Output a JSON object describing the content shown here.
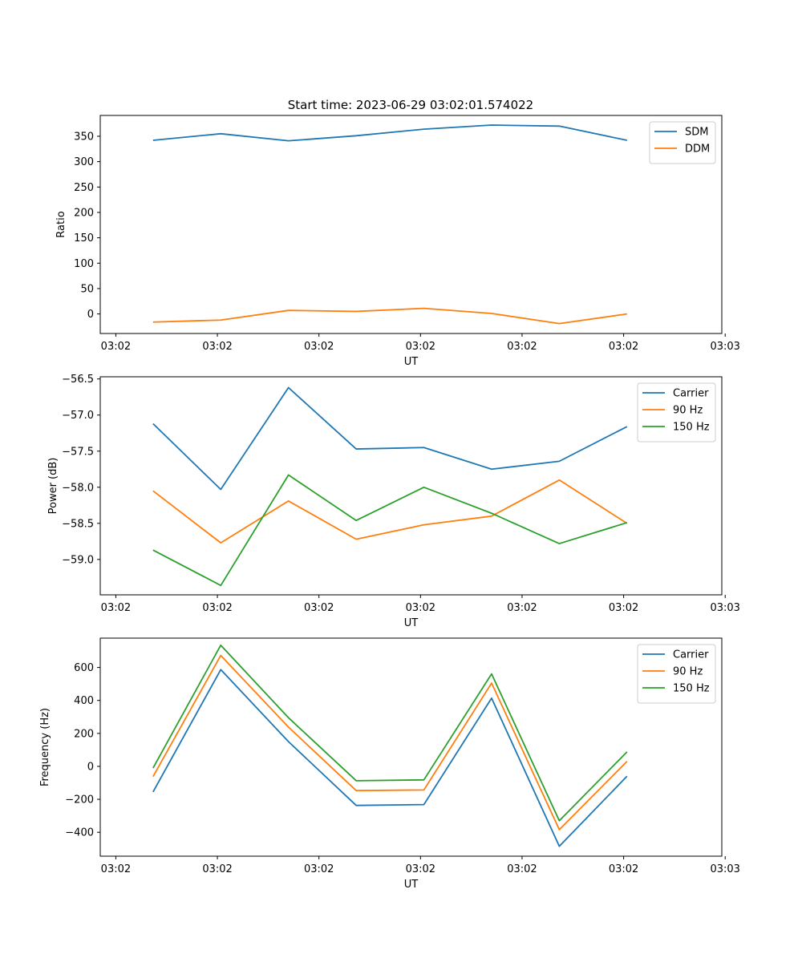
{
  "figure": {
    "title": "Start time: 2023-06-29 03:02:01.574022"
  },
  "chart_data": [
    {
      "type": "line",
      "ylabel": "Ratio",
      "xlabel": "UT",
      "x": [
        1,
        2,
        3,
        4,
        5,
        6,
        7,
        8
      ],
      "xlim": [
        0.22,
        9.4
      ],
      "x_ticks": [
        {
          "pos": 0.45,
          "label": "03:02"
        },
        {
          "pos": 1.95,
          "label": "03:02"
        },
        {
          "pos": 3.45,
          "label": "03:02"
        },
        {
          "pos": 4.95,
          "label": "03:02"
        },
        {
          "pos": 6.45,
          "label": "03:02"
        },
        {
          "pos": 7.95,
          "label": "03:02"
        },
        {
          "pos": 9.45,
          "label": "03:03"
        }
      ],
      "ylim": [
        -38.5,
        391
      ],
      "y_ticks": [
        0,
        50,
        100,
        150,
        200,
        250,
        300,
        350
      ],
      "legend": "top-right",
      "grid": false,
      "series": [
        {
          "name": "SDM",
          "color": "#1f77b4",
          "values": [
            342,
            355,
            341,
            351,
            364,
            372,
            370,
            342
          ]
        },
        {
          "name": "DDM",
          "color": "#ff7f0e",
          "values": [
            -16,
            -12,
            7,
            5,
            11,
            1,
            -19,
            0
          ]
        }
      ]
    },
    {
      "type": "line",
      "ylabel": "Power (dB)",
      "xlabel": "UT",
      "x": [
        1,
        2,
        3,
        4,
        5,
        6,
        7,
        8
      ],
      "xlim": [
        0.22,
        9.4
      ],
      "x_ticks": [
        {
          "pos": 0.45,
          "label": "03:02"
        },
        {
          "pos": 1.95,
          "label": "03:02"
        },
        {
          "pos": 3.45,
          "label": "03:02"
        },
        {
          "pos": 4.95,
          "label": "03:02"
        },
        {
          "pos": 6.45,
          "label": "03:02"
        },
        {
          "pos": 7.95,
          "label": "03:02"
        },
        {
          "pos": 9.45,
          "label": "03:03"
        }
      ],
      "ylim": [
        -59.49,
        -56.47
      ],
      "y_ticks": [
        -59.0,
        -58.5,
        -58.0,
        -57.5,
        -57.0,
        -56.5
      ],
      "y_tick_labels": [
        "−59.0",
        "−58.5",
        "−58.0",
        "−57.5",
        "−57.0",
        "−56.5"
      ],
      "legend": "top-right",
      "grid": false,
      "series": [
        {
          "name": "Carrier",
          "color": "#1f77b4",
          "values": [
            -57.12,
            -58.03,
            -56.62,
            -57.47,
            -57.45,
            -57.75,
            -57.64,
            -57.16
          ]
        },
        {
          "name": "90 Hz",
          "color": "#ff7f0e",
          "values": [
            -58.05,
            -58.77,
            -58.19,
            -58.72,
            -58.52,
            -58.4,
            -57.9,
            -58.5
          ]
        },
        {
          "name": "150 Hz",
          "color": "#2ca02c",
          "values": [
            -58.87,
            -59.36,
            -57.83,
            -58.46,
            -58.0,
            -58.36,
            -58.78,
            -58.49
          ]
        }
      ]
    },
    {
      "type": "line",
      "ylabel": "Frequency (Hz)",
      "xlabel": "UT",
      "x": [
        1,
        2,
        3,
        4,
        5,
        6,
        7,
        8
      ],
      "xlim": [
        0.22,
        9.4
      ],
      "x_ticks": [
        {
          "pos": 0.45,
          "label": "03:02"
        },
        {
          "pos": 1.95,
          "label": "03:02"
        },
        {
          "pos": 3.45,
          "label": "03:02"
        },
        {
          "pos": 4.95,
          "label": "03:02"
        },
        {
          "pos": 6.45,
          "label": "03:02"
        },
        {
          "pos": 7.95,
          "label": "03:02"
        },
        {
          "pos": 9.45,
          "label": "03:03"
        }
      ],
      "ylim": [
        -545,
        778
      ],
      "y_ticks": [
        -400,
        -200,
        0,
        200,
        400,
        600
      ],
      "y_tick_labels": [
        "−400",
        "−200",
        "0",
        "200",
        "400",
        "600"
      ],
      "legend": "top-right",
      "grid": false,
      "series": [
        {
          "name": "Carrier",
          "color": "#1f77b4",
          "values": [
            -155,
            587,
            150,
            -237,
            -232,
            414,
            -485,
            -60
          ]
        },
        {
          "name": "90 Hz",
          "color": "#ff7f0e",
          "values": [
            -62,
            673,
            238,
            -147,
            -143,
            505,
            -384,
            30
          ]
        },
        {
          "name": "150 Hz",
          "color": "#2ca02c",
          "values": [
            -10,
            735,
            295,
            -87,
            -82,
            561,
            -330,
            88
          ]
        }
      ]
    }
  ]
}
